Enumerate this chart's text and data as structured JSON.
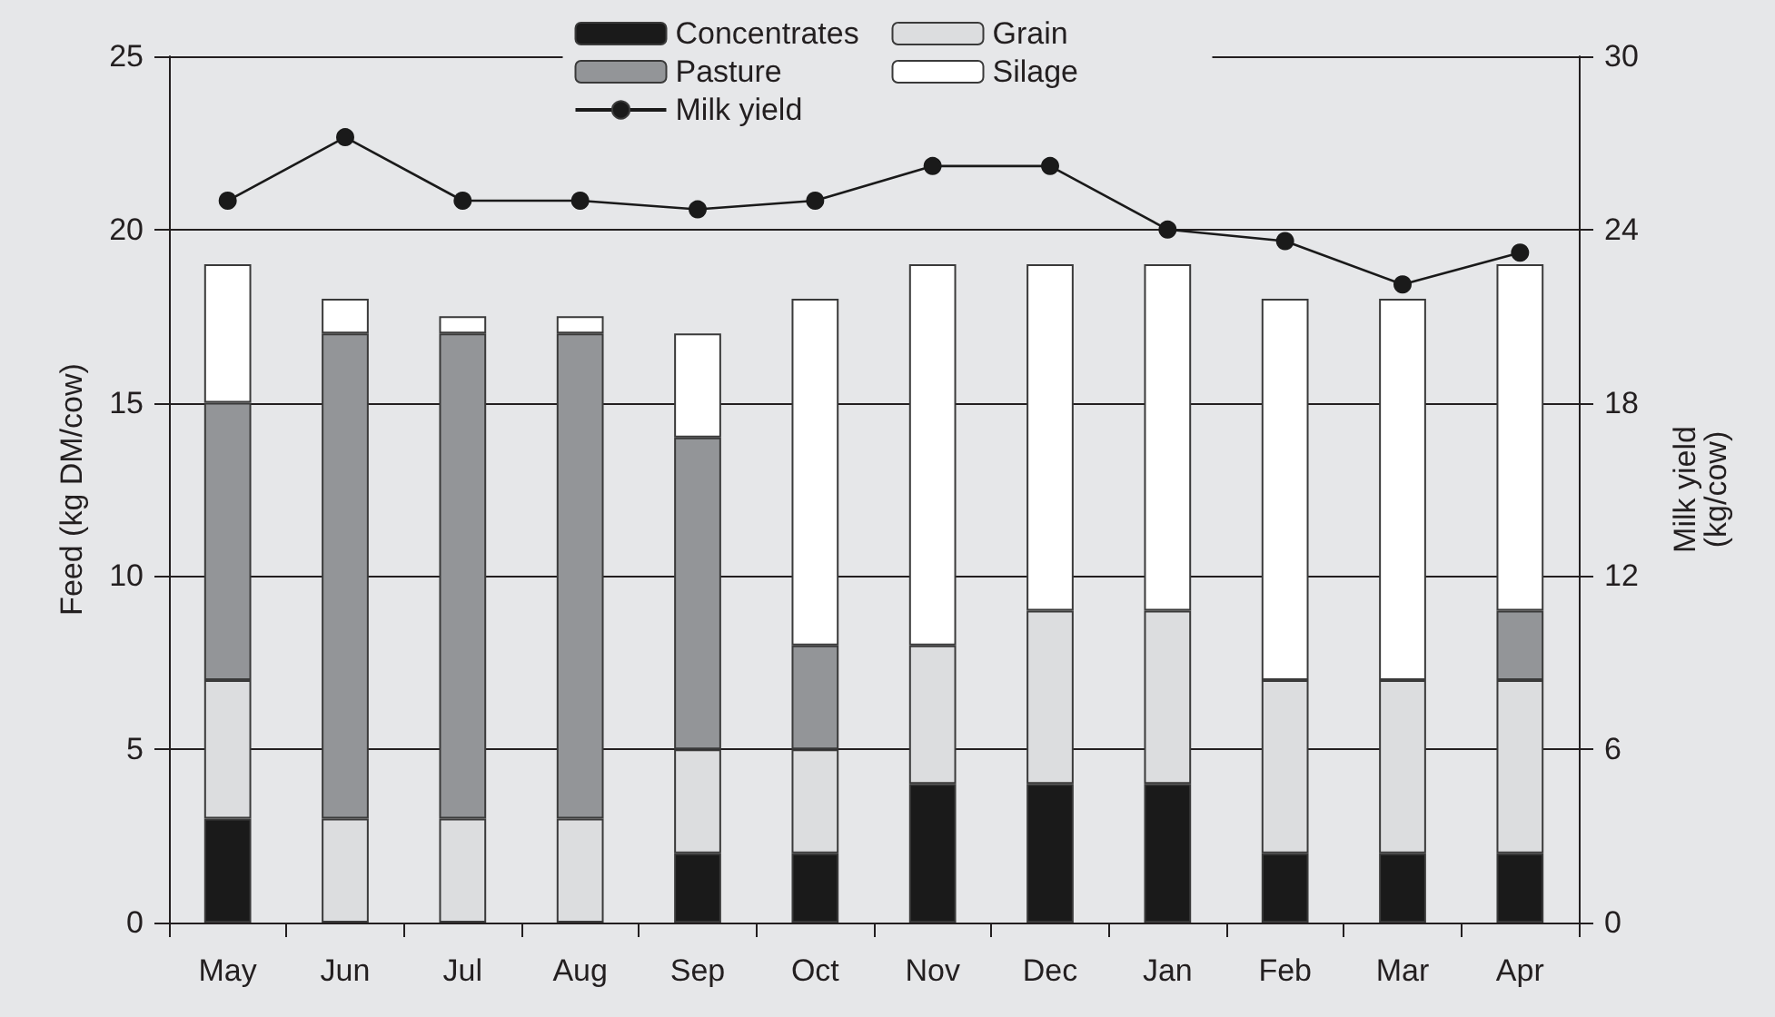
{
  "chart_data": {
    "type": "bar",
    "stacked": true,
    "categories": [
      "May",
      "Jun",
      "Jul",
      "Aug",
      "Sep",
      "Oct",
      "Nov",
      "Dec",
      "Jan",
      "Feb",
      "Mar",
      "Apr"
    ],
    "series": [
      {
        "name": "Concentrates",
        "color": "#1a1a1a",
        "values": [
          3,
          0,
          0,
          0,
          2,
          2,
          4,
          4,
          4,
          2,
          2,
          2
        ]
      },
      {
        "name": "Grain",
        "color": "#dcdddf",
        "values": [
          4,
          3,
          3,
          3,
          3,
          3,
          4,
          5,
          5,
          5,
          5,
          5
        ]
      },
      {
        "name": "Pasture",
        "color": "#939598",
        "values": [
          8,
          14,
          14,
          14,
          9,
          3,
          0,
          0,
          0,
          0,
          0,
          2
        ]
      },
      {
        "name": "Silage",
        "color": "#ffffff",
        "values": [
          4,
          1,
          0.5,
          0.5,
          3,
          10,
          11,
          10,
          10,
          11,
          11,
          10
        ]
      },
      {
        "name": "Milk yield",
        "type": "line",
        "axis": "y2",
        "color": "#1a1a1a",
        "marker": "circle",
        "values": [
          25,
          27.2,
          25,
          25,
          24.7,
          25,
          26.2,
          26.2,
          24,
          23.6,
          22.1,
          23.2
        ]
      }
    ],
    "ylabel": "Feed (kg DM/cow)",
    "y2label": "Milk yield\n(kg/cow)",
    "ylim": [
      0,
      25
    ],
    "yticks": [
      0,
      5,
      10,
      15,
      20,
      25
    ],
    "y2lim": [
      0,
      30
    ],
    "y2ticks": [
      0,
      6,
      12,
      18,
      24,
      30
    ],
    "grid": "y",
    "legend": "top"
  }
}
